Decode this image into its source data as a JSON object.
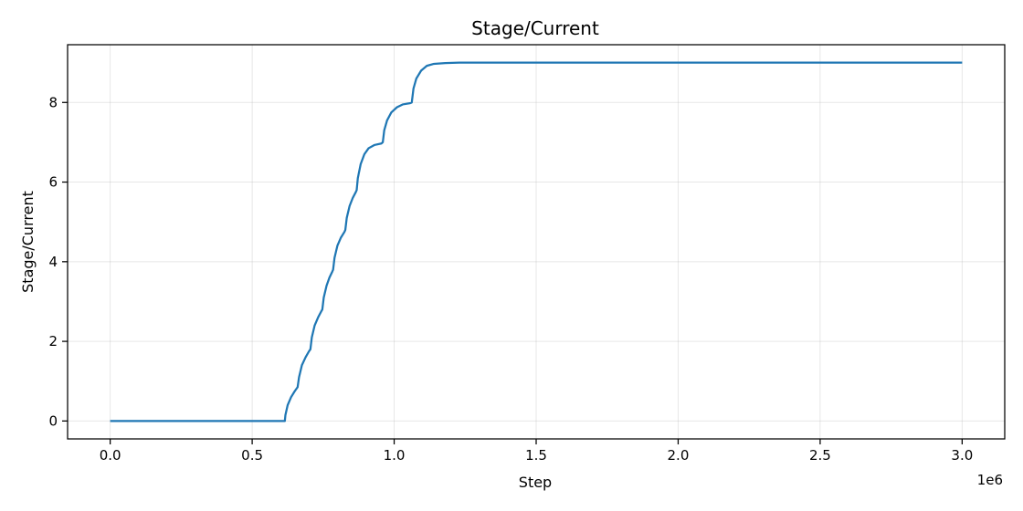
{
  "chart_data": {
    "type": "line",
    "title": "Stage/Current",
    "xlabel": "Step",
    "ylabel": "Stage/Current",
    "x_offset_label": "1e6",
    "xlim": [
      -150000,
      3150000
    ],
    "ylim": [
      -0.45,
      9.45
    ],
    "xticks": [
      0,
      500000,
      1000000,
      1500000,
      2000000,
      2500000,
      3000000
    ],
    "xtick_labels": [
      "0.0",
      "0.5",
      "1.0",
      "1.5",
      "2.0",
      "2.5",
      "3.0"
    ],
    "yticks": [
      0,
      2,
      4,
      6,
      8
    ],
    "ytick_labels": [
      "0",
      "2",
      "4",
      "6",
      "8"
    ],
    "grid": true,
    "color": "#1f77b4",
    "series": [
      {
        "values": [
          [
            0,
            0
          ],
          [
            300000,
            0
          ],
          [
            615000,
            0
          ],
          [
            617000,
            0.15
          ],
          [
            625000,
            0.4
          ],
          [
            637000,
            0.6
          ],
          [
            650000,
            0.75
          ],
          [
            660000,
            0.85
          ],
          [
            665000,
            1.1
          ],
          [
            675000,
            1.4
          ],
          [
            688000,
            1.6
          ],
          [
            700000,
            1.75
          ],
          [
            705000,
            1.8
          ],
          [
            710000,
            2.1
          ],
          [
            720000,
            2.4
          ],
          [
            732000,
            2.6
          ],
          [
            743000,
            2.75
          ],
          [
            747000,
            2.8
          ],
          [
            752000,
            3.1
          ],
          [
            762000,
            3.4
          ],
          [
            772000,
            3.6
          ],
          [
            782000,
            3.75
          ],
          [
            785000,
            3.8
          ],
          [
            790000,
            4.1
          ],
          [
            800000,
            4.4
          ],
          [
            812000,
            4.6
          ],
          [
            825000,
            4.75
          ],
          [
            828000,
            4.8
          ],
          [
            833000,
            5.1
          ],
          [
            843000,
            5.4
          ],
          [
            854000,
            5.6
          ],
          [
            865000,
            5.75
          ],
          [
            868000,
            5.8
          ],
          [
            872000,
            6.1
          ],
          [
            882000,
            6.45
          ],
          [
            895000,
            6.7
          ],
          [
            910000,
            6.85
          ],
          [
            930000,
            6.93
          ],
          [
            955000,
            6.97
          ],
          [
            960000,
            7.0
          ],
          [
            965000,
            7.3
          ],
          [
            975000,
            7.55
          ],
          [
            990000,
            7.75
          ],
          [
            1010000,
            7.88
          ],
          [
            1030000,
            7.95
          ],
          [
            1055000,
            7.98
          ],
          [
            1062000,
            8.0
          ],
          [
            1068000,
            8.35
          ],
          [
            1078000,
            8.6
          ],
          [
            1095000,
            8.8
          ],
          [
            1115000,
            8.92
          ],
          [
            1140000,
            8.97
          ],
          [
            1180000,
            8.99
          ],
          [
            1230000,
            9.0
          ],
          [
            1500000,
            9.0
          ],
          [
            2000000,
            9.0
          ],
          [
            2500000,
            9.0
          ],
          [
            3000000,
            9.0
          ]
        ]
      }
    ]
  }
}
